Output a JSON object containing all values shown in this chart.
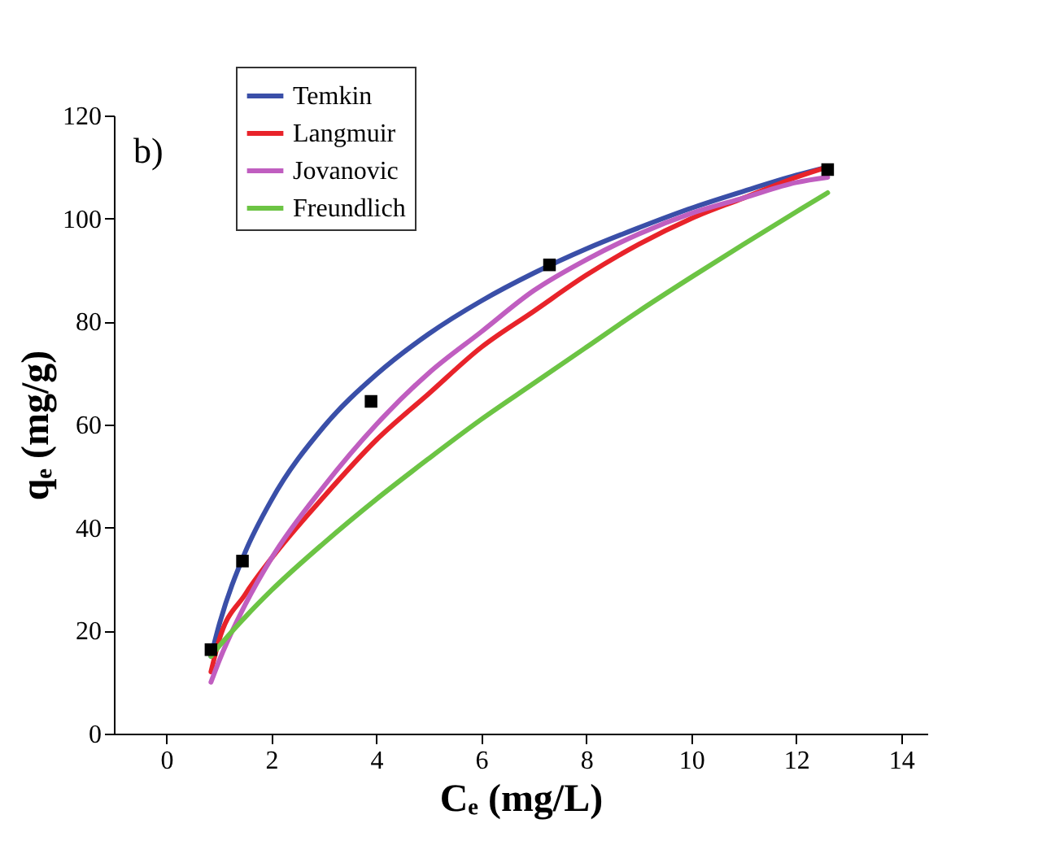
{
  "chart_data": {
    "type": "line",
    "xlabel": "Cₑ (mg/L)",
    "ylabel": "qₑ (mg/g)",
    "annotations": [
      "b)"
    ],
    "xlim": [
      -1,
      14.5
    ],
    "ylim": [
      0,
      120
    ],
    "xticks": [
      0,
      2,
      4,
      6,
      8,
      10,
      12,
      14
    ],
    "yticks": [
      0,
      20,
      40,
      60,
      80,
      100,
      120
    ],
    "grid": false,
    "legend": "top",
    "marker": "none",
    "line_style": "solid",
    "series": [
      {
        "name": "Temkin",
        "color": "#3a4fa8",
        "x": [
          0.85,
          1,
          1.5,
          2,
          3,
          4,
          5,
          6,
          7,
          8,
          9,
          10,
          11,
          12,
          12.6
        ],
        "values": [
          15,
          20.9,
          35.2,
          45.3,
          59.6,
          69.7,
          77.6,
          84,
          89.4,
          94.1,
          98.2,
          102,
          105.3,
          108.4,
          110
        ]
      },
      {
        "name": "Langmuir",
        "color": "#e8232a",
        "x": [
          0.85,
          1,
          1.5,
          2,
          3,
          4,
          5,
          6,
          7,
          8,
          9,
          10,
          11,
          12,
          12.6
        ],
        "values": [
          12,
          18,
          27,
          34,
          46,
          57,
          66,
          75,
          82,
          89,
          95,
          100,
          104,
          108,
          110
        ]
      },
      {
        "name": "Jovanovic",
        "color": "#c05ec0",
        "x": [
          0.85,
          1,
          1.5,
          2,
          3,
          4,
          5,
          6,
          7,
          8,
          9,
          10,
          11,
          12,
          12.6
        ],
        "values": [
          10,
          14,
          25,
          34,
          48,
          60,
          70,
          78,
          86,
          92,
          97,
          101,
          104,
          107,
          108
        ]
      },
      {
        "name": "Freundlich",
        "color": "#6cc444",
        "x": [
          0.85,
          1,
          1.5,
          2,
          3,
          4,
          5,
          6,
          7,
          8,
          9,
          10,
          11,
          12,
          12.6
        ],
        "values": [
          15,
          16.9,
          22.6,
          27.8,
          37,
          45.5,
          53.4,
          61,
          68,
          75,
          82,
          88.6,
          95,
          101.3,
          105
        ]
      },
      {
        "type": "scatter",
        "marker": "square",
        "color": "#000000",
        "x": [
          0.85,
          1.45,
          3.9,
          7.3,
          12.6
        ],
        "values": [
          16.3,
          33.5,
          64.5,
          91,
          109.5
        ]
      }
    ]
  }
}
